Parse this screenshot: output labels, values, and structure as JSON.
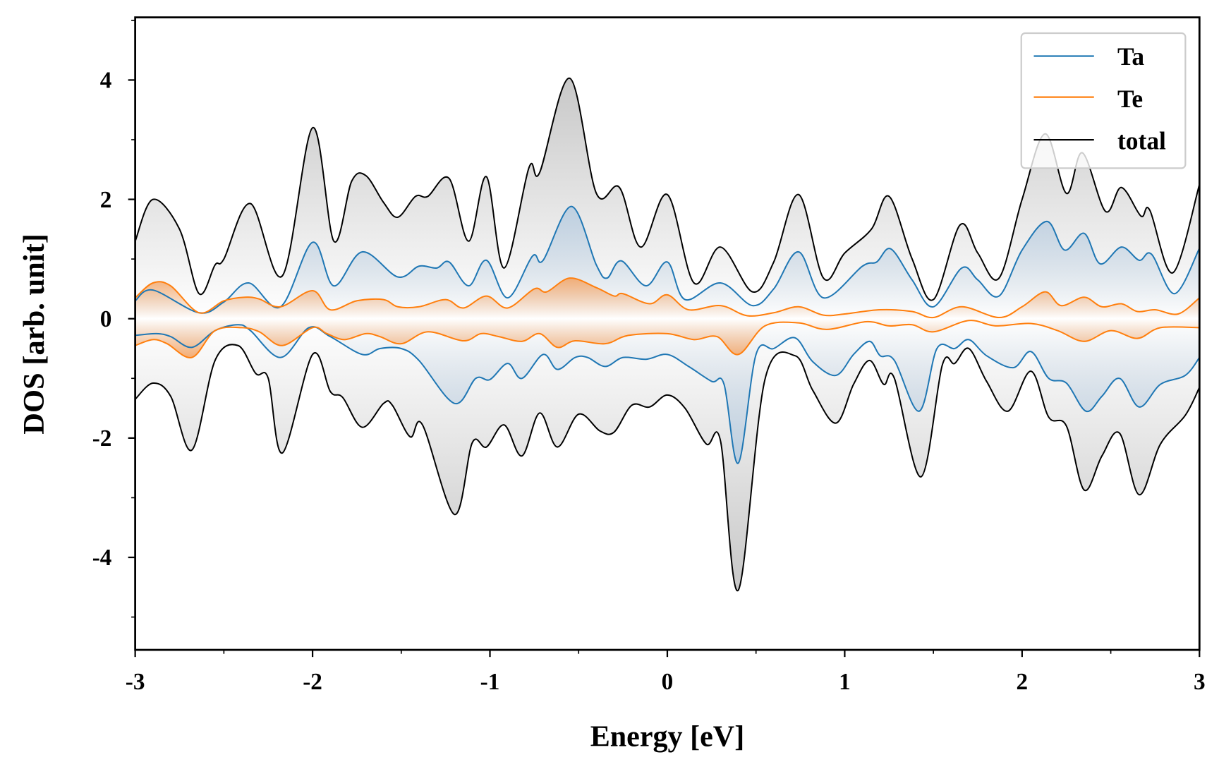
{
  "chart_data": {
    "type": "line",
    "title": "",
    "xlabel": "Energy [eV]",
    "ylabel": "DOS [arb. unit]",
    "xlim": [
      -3,
      3
    ],
    "ylim": [
      -5.55,
      5.05
    ],
    "xticks": [
      "-3",
      "-2",
      "-1",
      "0",
      "1",
      "2",
      "3"
    ],
    "yticks": [
      "-4",
      "-2",
      "0",
      "2",
      "4"
    ],
    "grid": false,
    "legend_position": "top-right",
    "series": [
      {
        "name": "Ta",
        "color": "#1f77b4",
        "fill": "#b9cde0",
        "spin": "up",
        "x": [
          -3,
          -2.9,
          -2.64,
          -2.5,
          -2.36,
          -2.18,
          -2.0,
          -1.88,
          -1.72,
          -1.52,
          -1.4,
          -1.3,
          -1.23,
          -1.12,
          -1.02,
          -0.9,
          -0.76,
          -0.7,
          -0.54,
          -0.4,
          -0.34,
          -0.26,
          -0.12,
          0.0,
          0.1,
          0.3,
          0.48,
          0.6,
          0.74,
          0.88,
          1.1,
          1.18,
          1.26,
          1.38,
          1.5,
          1.66,
          1.75,
          1.87,
          2.0,
          2.14,
          2.24,
          2.35,
          2.44,
          2.56,
          2.66,
          2.73,
          2.86,
          3.0
        ],
        "y": [
          0.3,
          0.48,
          0.1,
          0.28,
          0.6,
          0.2,
          1.28,
          0.55,
          1.12,
          0.7,
          0.88,
          0.85,
          0.95,
          0.55,
          0.98,
          0.35,
          1.05,
          0.98,
          1.88,
          0.9,
          0.68,
          0.97,
          0.55,
          0.95,
          0.32,
          0.6,
          0.22,
          0.5,
          1.12,
          0.35,
          0.88,
          0.95,
          1.17,
          0.65,
          0.2,
          0.85,
          0.65,
          0.38,
          1.15,
          1.63,
          1.15,
          1.43,
          0.92,
          1.2,
          0.98,
          1.08,
          0.42,
          1.18
        ]
      },
      {
        "name": "Te",
        "color": "#ff7f0e",
        "fill": "#f3a567",
        "spin": "up",
        "x": [
          -3,
          -2.9,
          -2.8,
          -2.64,
          -2.5,
          -2.38,
          -2.3,
          -2.18,
          -2.0,
          -1.9,
          -1.75,
          -1.6,
          -1.52,
          -1.4,
          -1.25,
          -1.15,
          -1.02,
          -0.9,
          -0.75,
          -0.68,
          -0.55,
          -0.4,
          -0.3,
          -0.25,
          -0.1,
          0.0,
          0.12,
          0.3,
          0.45,
          0.6,
          0.74,
          0.88,
          1.0,
          1.2,
          1.38,
          1.5,
          1.66,
          1.87,
          2.0,
          2.13,
          2.22,
          2.35,
          2.45,
          2.56,
          2.65,
          2.75,
          2.88,
          3.0
        ],
        "y": [
          0.35,
          0.6,
          0.55,
          0.1,
          0.3,
          0.36,
          0.33,
          0.2,
          0.47,
          0.15,
          0.3,
          0.32,
          0.2,
          0.2,
          0.32,
          0.18,
          0.38,
          0.18,
          0.5,
          0.45,
          0.68,
          0.52,
          0.38,
          0.42,
          0.25,
          0.4,
          0.15,
          0.22,
          0.05,
          0.1,
          0.2,
          0.06,
          0.08,
          0.15,
          0.12,
          0.02,
          0.2,
          0.02,
          0.2,
          0.45,
          0.22,
          0.36,
          0.2,
          0.25,
          0.12,
          0.15,
          0.08,
          0.35
        ]
      },
      {
        "name": "total",
        "color": "#000000",
        "fill": "#c8c8c8",
        "spin": "up",
        "x": [
          -3,
          -2.9,
          -2.75,
          -2.64,
          -2.55,
          -2.5,
          -2.35,
          -2.17,
          -2.0,
          -1.88,
          -1.78,
          -1.7,
          -1.6,
          -1.52,
          -1.42,
          -1.35,
          -1.23,
          -1.12,
          -1.02,
          -0.92,
          -0.78,
          -0.72,
          -0.55,
          -0.4,
          -0.27,
          -0.15,
          0.0,
          0.15,
          0.3,
          0.48,
          0.6,
          0.74,
          0.88,
          1.0,
          1.15,
          1.25,
          1.38,
          1.5,
          1.65,
          1.75,
          1.87,
          2.0,
          2.13,
          2.25,
          2.34,
          2.47,
          2.56,
          2.67,
          2.72,
          2.85,
          3.0
        ],
        "y": [
          1.3,
          2.0,
          1.5,
          0.42,
          0.9,
          1.0,
          1.93,
          0.72,
          3.2,
          1.3,
          2.3,
          2.4,
          1.95,
          1.7,
          2.05,
          2.05,
          2.35,
          1.3,
          2.38,
          0.85,
          2.53,
          2.45,
          4.03,
          2.1,
          2.2,
          1.2,
          2.08,
          0.6,
          1.2,
          0.45,
          0.95,
          2.08,
          0.68,
          1.1,
          1.5,
          2.05,
          1.0,
          0.32,
          1.57,
          1.1,
          0.68,
          2.0,
          3.1,
          2.1,
          2.78,
          1.8,
          2.2,
          1.72,
          1.82,
          0.77,
          2.25
        ]
      },
      {
        "name": "Ta",
        "color": "#1f77b4",
        "fill": "#b9cde0",
        "spin": "down",
        "x": [
          -3,
          -2.88,
          -2.8,
          -2.68,
          -2.55,
          -2.42,
          -2.35,
          -2.18,
          -2.02,
          -1.9,
          -1.72,
          -1.62,
          -1.5,
          -1.4,
          -1.2,
          -1.08,
          -1.0,
          -0.9,
          -0.82,
          -0.7,
          -0.62,
          -0.52,
          -0.45,
          -0.35,
          -0.25,
          -0.12,
          0.0,
          0.12,
          0.25,
          0.32,
          0.4,
          0.5,
          0.6,
          0.72,
          0.82,
          0.95,
          1.05,
          1.14,
          1.2,
          1.28,
          1.42,
          1.52,
          1.62,
          1.7,
          1.8,
          1.95,
          2.05,
          2.15,
          2.25,
          2.36,
          2.45,
          2.55,
          2.66,
          2.78,
          2.92,
          3.0
        ],
        "y": [
          -0.28,
          -0.25,
          -0.3,
          -0.48,
          -0.2,
          -0.1,
          -0.2,
          -0.65,
          -0.15,
          -0.3,
          -0.6,
          -0.5,
          -0.5,
          -0.7,
          -1.42,
          -1.0,
          -1.02,
          -0.75,
          -1.0,
          -0.6,
          -0.85,
          -0.65,
          -0.65,
          -0.8,
          -0.65,
          -0.68,
          -0.6,
          -0.8,
          -1.05,
          -1.1,
          -2.42,
          -0.6,
          -0.5,
          -0.32,
          -0.72,
          -0.95,
          -0.6,
          -0.38,
          -0.62,
          -0.7,
          -1.55,
          -0.5,
          -0.5,
          -0.35,
          -0.62,
          -0.82,
          -0.55,
          -1.0,
          -1.08,
          -1.55,
          -1.3,
          -1.0,
          -1.48,
          -1.1,
          -0.95,
          -0.65
        ]
      },
      {
        "name": "Te",
        "color": "#ff7f0e",
        "fill": "#f3a567",
        "spin": "down",
        "x": [
          -3,
          -2.9,
          -2.82,
          -2.68,
          -2.55,
          -2.4,
          -2.3,
          -2.17,
          -2.0,
          -1.92,
          -1.82,
          -1.7,
          -1.62,
          -1.5,
          -1.35,
          -1.15,
          -1.05,
          -0.95,
          -0.82,
          -0.72,
          -0.62,
          -0.52,
          -0.35,
          -0.22,
          0.0,
          0.15,
          0.28,
          0.4,
          0.55,
          0.74,
          0.9,
          1.12,
          1.25,
          1.38,
          1.5,
          1.7,
          1.85,
          2.05,
          2.2,
          2.35,
          2.5,
          2.65,
          2.78,
          3.0
        ],
        "y": [
          -0.45,
          -0.35,
          -0.42,
          -0.65,
          -0.2,
          -0.15,
          -0.22,
          -0.45,
          -0.15,
          -0.25,
          -0.35,
          -0.25,
          -0.3,
          -0.42,
          -0.22,
          -0.37,
          -0.25,
          -0.3,
          -0.38,
          -0.25,
          -0.48,
          -0.37,
          -0.42,
          -0.28,
          -0.25,
          -0.35,
          -0.3,
          -0.6,
          -0.12,
          -0.07,
          -0.18,
          -0.05,
          -0.12,
          -0.1,
          -0.22,
          -0.03,
          -0.12,
          -0.08,
          -0.2,
          -0.38,
          -0.2,
          -0.33,
          -0.15,
          -0.15
        ]
      },
      {
        "name": "total",
        "color": "#000000",
        "fill": "#c8c8c8",
        "spin": "down",
        "x": [
          -3,
          -2.9,
          -2.8,
          -2.68,
          -2.55,
          -2.42,
          -2.32,
          -2.25,
          -2.17,
          -2.0,
          -1.9,
          -1.83,
          -1.72,
          -1.6,
          -1.55,
          -1.45,
          -1.38,
          -1.2,
          -1.1,
          -1.02,
          -0.92,
          -0.82,
          -0.72,
          -0.62,
          -0.5,
          -0.38,
          -0.3,
          -0.2,
          -0.1,
          0.0,
          0.1,
          0.22,
          0.3,
          0.4,
          0.55,
          0.72,
          0.82,
          0.95,
          1.05,
          1.14,
          1.22,
          1.28,
          1.43,
          1.55,
          1.62,
          1.7,
          1.8,
          1.92,
          2.05,
          2.15,
          2.25,
          2.35,
          2.45,
          2.55,
          2.66,
          2.78,
          2.92,
          3.0
        ],
        "y": [
          -1.35,
          -1.08,
          -1.3,
          -2.2,
          -0.7,
          -0.45,
          -0.92,
          -1.0,
          -2.25,
          -0.6,
          -1.22,
          -1.32,
          -1.82,
          -1.42,
          -1.45,
          -1.98,
          -1.78,
          -3.28,
          -2.08,
          -2.15,
          -1.78,
          -2.3,
          -1.58,
          -2.15,
          -1.6,
          -1.88,
          -1.9,
          -1.45,
          -1.48,
          -1.28,
          -1.5,
          -2.1,
          -2.05,
          -4.55,
          -1.02,
          -0.62,
          -1.2,
          -1.75,
          -1.1,
          -0.7,
          -1.1,
          -1.0,
          -2.65,
          -0.78,
          -0.75,
          -0.5,
          -1.05,
          -1.55,
          -0.88,
          -1.65,
          -1.8,
          -2.87,
          -2.3,
          -1.92,
          -2.95,
          -2.1,
          -1.62,
          -1.15
        ]
      }
    ],
    "legend": [
      "Ta",
      "Te",
      "total"
    ]
  }
}
